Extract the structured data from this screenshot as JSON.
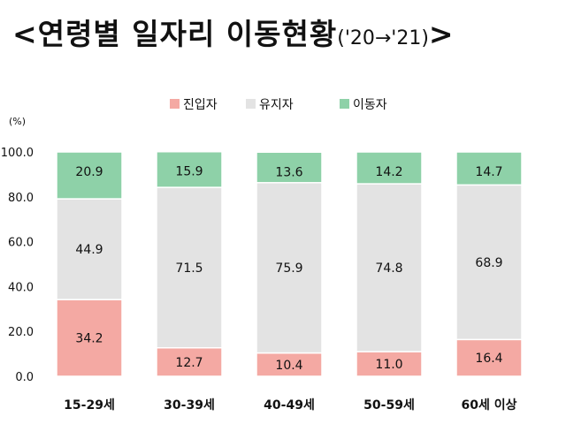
{
  "title": {
    "main": "<연령별 일자리 이동현황",
    "sub": "('20→'21)",
    "close": ">"
  },
  "chart_data": {
    "type": "bar",
    "stacked": true,
    "normalized_percent": true,
    "unit_label": "(%)",
    "categories": [
      "15-29세",
      "30-39세",
      "40-49세",
      "50-59세",
      "60세 이상"
    ],
    "series": [
      {
        "name": "진입자",
        "color": "#f4a9a3",
        "values": [
          34.2,
          12.7,
          10.4,
          11.0,
          16.4
        ]
      },
      {
        "name": "유지자",
        "color": "#e3e3e3",
        "values": [
          44.9,
          71.5,
          75.9,
          74.8,
          68.9
        ]
      },
      {
        "name": "이동자",
        "color": "#8ed1a8",
        "values": [
          20.9,
          15.9,
          13.6,
          14.2,
          14.7
        ]
      }
    ],
    "yticks": [
      "0.0",
      "20.0",
      "40.0",
      "60.0",
      "80.0",
      "100.0"
    ],
    "ylim": [
      0,
      100
    ],
    "legend_position": "top-center",
    "grid": false
  }
}
